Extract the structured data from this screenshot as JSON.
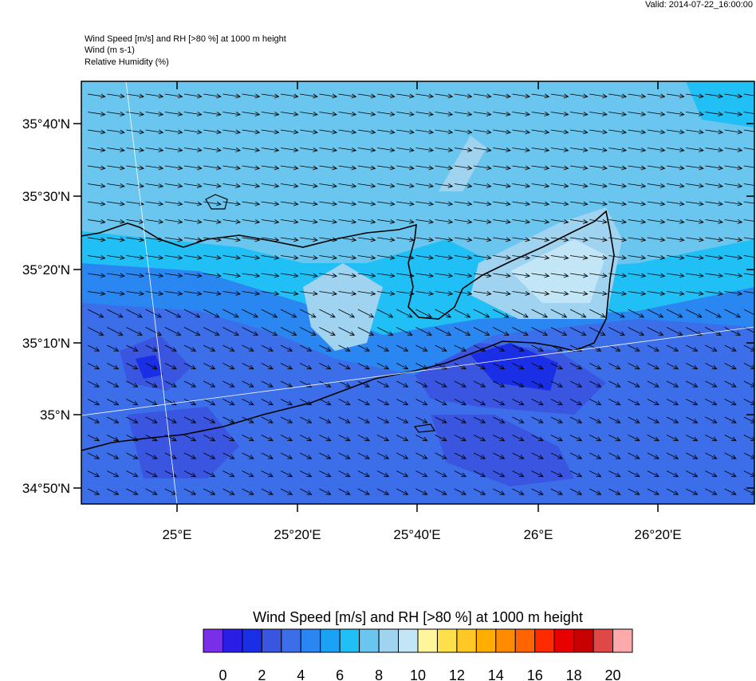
{
  "header": {
    "valid": "Valid: 2014-07-22_16:00:00",
    "lines": [
      "Wind Speed [m/s] and RH [>80 %] at 1000 m height",
      "Wind   (m s-1)",
      "Relative Humidity   (%)"
    ]
  },
  "map": {
    "lat_labels": [
      "35°40'N",
      "35°30'N",
      "35°20'N",
      "35°10'N",
      "35°N",
      "34°50'N"
    ],
    "lon_labels": [
      "25°E",
      "25°20'E",
      "25°40'E",
      "26°E",
      "26°20'E"
    ]
  },
  "colorbar": {
    "title": "Wind Speed [m/s] and RH [>80 %] at 1000 m height",
    "colors": [
      "#7a2ee8",
      "#2a1ee6",
      "#1a2ee6",
      "#3a55e0",
      "#3b6ee8",
      "#2a86f0",
      "#1aa2f5",
      "#20bff5",
      "#6bc6ef",
      "#9fd3ef",
      "#c2e6f5",
      "#fff59a",
      "#ffe04a",
      "#ffc825",
      "#ffae00",
      "#ff8c00",
      "#ff6400",
      "#ff2a00",
      "#e80000",
      "#c80000",
      "#e04848",
      "#ffaaaa"
    ],
    "labels": [
      "0",
      "2",
      "4",
      "6",
      "8",
      "10",
      "12",
      "14",
      "16",
      "18",
      "20"
    ]
  }
}
